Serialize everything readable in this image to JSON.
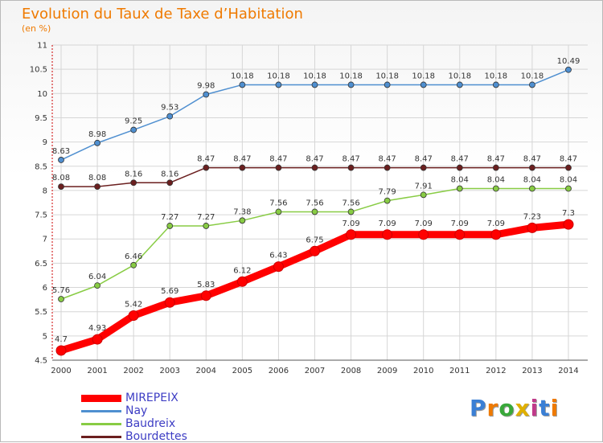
{
  "title": "Evolution du Taux de Taxe d’Habitation",
  "unit_label": "(en %)",
  "logo_text": "Proxiti",
  "chart_data": {
    "type": "line",
    "title": "Evolution du Taux de Taxe d’Habitation",
    "ylabel": "(en %)",
    "xlabel": "",
    "x": [
      "2000",
      "2001",
      "2002",
      "2003",
      "2004",
      "2005",
      "2006",
      "2007",
      "2008",
      "2009",
      "2010",
      "2011",
      "2012",
      "2013",
      "2014"
    ],
    "ylim": [
      4.5,
      11
    ],
    "yticks": [
      "4.5",
      "5",
      "5.5",
      "6",
      "6.5",
      "7",
      "7.5",
      "8",
      "8.5",
      "9",
      "9.5",
      "10",
      "10.5",
      "11"
    ],
    "grid": true,
    "legend_position": "bottom-left",
    "series": [
      {
        "name": "MIREPEIX",
        "color": "#ff0000",
        "values": [
          4.7,
          4.93,
          5.42,
          5.69,
          5.83,
          6.12,
          6.43,
          6.75,
          7.09,
          7.09,
          7.09,
          7.09,
          7.09,
          7.23,
          7.3
        ],
        "labels": [
          "4.7",
          "4.93",
          "5.42",
          "5.69",
          "5.83",
          "6.12",
          "6.43",
          "6.75",
          "7.09",
          "7.09",
          "7.09",
          "7.09",
          "7.09",
          "7.23",
          "7.3"
        ]
      },
      {
        "name": "Nay",
        "color": "#4f8fd0",
        "values": [
          8.63,
          8.98,
          9.25,
          9.53,
          9.98,
          10.18,
          10.18,
          10.18,
          10.18,
          10.18,
          10.18,
          10.18,
          10.18,
          10.18,
          10.49
        ],
        "labels": [
          "8.63",
          "8.98",
          "9.25",
          "9.53",
          "9.98",
          "10.18",
          "10.18",
          "10.18",
          "10.18",
          "10.18",
          "10.18",
          "10.18",
          "10.18",
          "10.18",
          "10.49"
        ]
      },
      {
        "name": "Baudreix",
        "color": "#88cc44",
        "values": [
          5.76,
          6.04,
          6.46,
          7.27,
          7.27,
          7.38,
          7.56,
          7.56,
          7.56,
          7.79,
          7.91,
          8.04,
          8.04,
          8.04,
          8.04
        ],
        "labels": [
          "5.76",
          "6.04",
          "6.46",
          "7.27",
          "7.27",
          "7.38",
          "7.56",
          "7.56",
          "7.56",
          "7.79",
          "7.91",
          "8.04",
          "8.04",
          "8.04",
          "8.04"
        ]
      },
      {
        "name": "Bourdettes",
        "color": "#6b1f1f",
        "values": [
          8.08,
          8.08,
          8.16,
          8.16,
          8.47,
          8.47,
          8.47,
          8.47,
          8.47,
          8.47,
          8.47,
          8.47,
          8.47,
          8.47,
          8.47
        ],
        "labels": [
          "8.08",
          "8.08",
          "8.16",
          "8.16",
          "8.47",
          "8.47",
          "8.47",
          "8.47",
          "8.47",
          "8.47",
          "8.47",
          "8.47",
          "8.47",
          "8.47",
          "8.47"
        ]
      }
    ]
  }
}
